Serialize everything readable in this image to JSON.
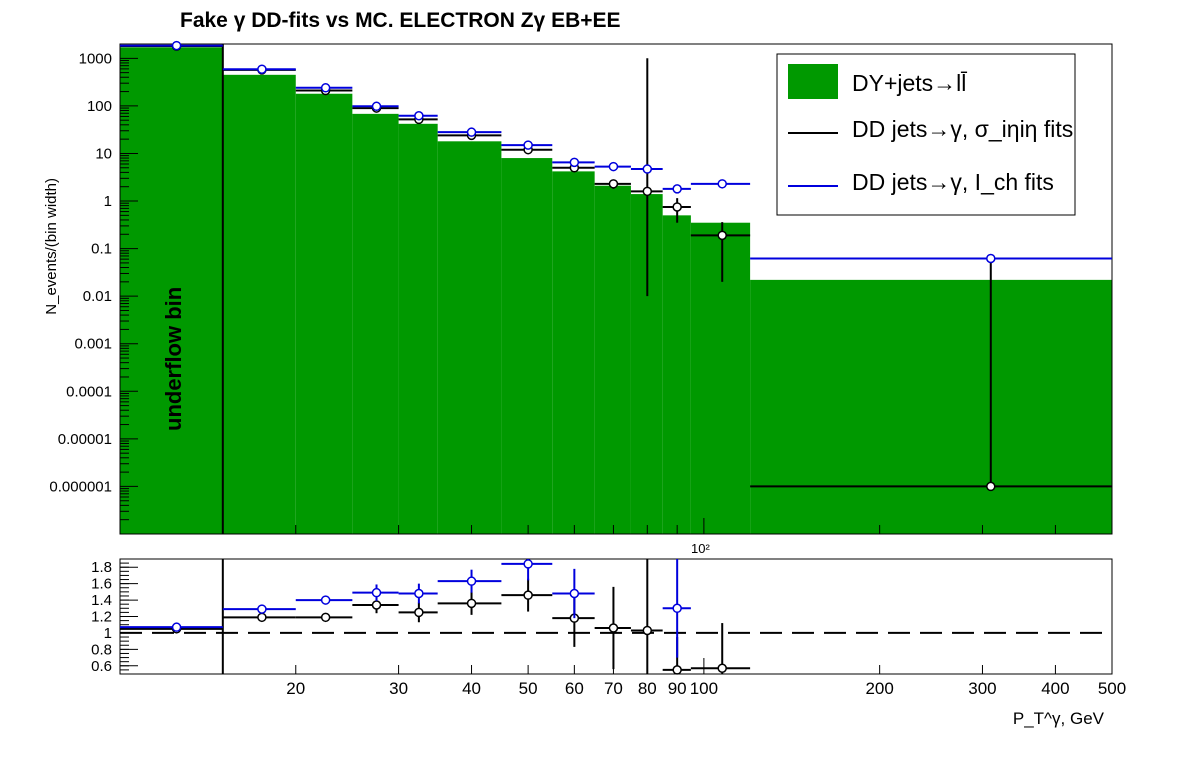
{
  "chart_data": {
    "type": "bar",
    "title": "Fake  γ DD-fits vs MC. ELECTRON Zγ  EB+EE",
    "xlabel": "P_T^γ, GeV",
    "ylabel": "N_events/(bin width)",
    "x_scale": "log",
    "y_scale": "log",
    "xlim": [
      10,
      500
    ],
    "ylim": [
      1e-07,
      2000
    ],
    "x_ticks": [
      "20",
      "30",
      "40",
      "50",
      "60",
      "70",
      "80",
      "90",
      "100",
      "200",
      "300",
      "400",
      "500"
    ],
    "x_multiplier_label": "10²",
    "y_ticks": [
      "0.000001",
      "0.00001",
      "0.0001",
      "0.001",
      "0.01",
      "0.1",
      "1",
      "10",
      "100",
      "1000"
    ],
    "annotation": "underflow bin",
    "legend_position": "top-right",
    "bin_edges": [
      10,
      15,
      20,
      25,
      30,
      35,
      45,
      55,
      65,
      75,
      85,
      95,
      120,
      500
    ],
    "series": [
      {
        "name": "DY+jets→ll̄",
        "kind": "histogram",
        "color": "#009900",
        "values": [
          1700,
          450,
          180,
          68,
          42,
          18,
          8,
          4.2,
          2.1,
          1.4,
          0.5,
          0.35,
          0.022
        ]
      },
      {
        "name": "DD jets→γ, σ_iηiη fits",
        "kind": "points",
        "color": "#000000",
        "x": [
          12.5,
          17.5,
          22.5,
          27.5,
          32.5,
          40,
          50,
          60,
          70,
          80,
          90,
          107.5,
          310
        ],
        "values": [
          1800,
          570,
          210,
          90,
          52,
          24,
          12,
          5.0,
          2.3,
          1.6,
          0.75,
          0.19,
          1e-06
        ],
        "err_low": [
          0,
          40,
          15,
          7,
          5,
          2.5,
          1.5,
          0.7,
          0.5,
          1.59,
          0.4,
          0.17,
          0
        ],
        "err_high": [
          0,
          40,
          15,
          7,
          5,
          2.5,
          1.5,
          0.7,
          0.5,
          1000,
          0.4,
          0.17,
          0.06
        ]
      },
      {
        "name": "DD jets→γ, I_ch fits",
        "kind": "points",
        "color": "#0000dd",
        "x": [
          12.5,
          17.5,
          22.5,
          27.5,
          32.5,
          40,
          50,
          60,
          70,
          80,
          90,
          107.5,
          310
        ],
        "values": [
          1850,
          590,
          240,
          98,
          62,
          28,
          15,
          6.5,
          5.3,
          4.7,
          1.8,
          2.3,
          0.062
        ],
        "err_low": [
          0,
          40,
          20,
          8,
          6,
          3,
          2,
          1,
          0.5,
          0.8,
          0.3,
          0.3,
          0
        ],
        "err_high": [
          0,
          40,
          20,
          8,
          6,
          3,
          2,
          1,
          0.5,
          0.8,
          0.3,
          0.3,
          0
        ]
      }
    ],
    "ratio_panel": {
      "ylim": [
        0.5,
        1.9
      ],
      "y_ticks": [
        "0.6",
        "0.8",
        "1",
        "1.2",
        "1.4",
        "1.6",
        "1.8"
      ],
      "reference_line": 1,
      "series": [
        {
          "name": "σ_iηiη ratio",
          "color": "#000000",
          "x": [
            12.5,
            17.5,
            22.5,
            27.5,
            32.5,
            40,
            50,
            60,
            70,
            80,
            90,
            107.5
          ],
          "values": [
            1.05,
            1.19,
            1.19,
            1.34,
            1.25,
            1.36,
            1.46,
            1.18,
            1.06,
            1.03,
            0.55,
            0.57
          ],
          "err": [
            0.02,
            0.04,
            0.05,
            0.1,
            0.12,
            0.14,
            0.2,
            0.35,
            0.5,
            0.9,
            0.4,
            0.55
          ]
        },
        {
          "name": "I_ch ratio",
          "color": "#0000dd",
          "x": [
            12.5,
            17.5,
            22.5,
            27.5,
            32.5,
            40,
            50,
            60,
            70,
            80,
            90,
            107.5
          ],
          "values": [
            1.07,
            1.29,
            1.4,
            1.49,
            1.48,
            1.63,
            1.84,
            1.48,
            null,
            null,
            1.3,
            null
          ],
          "err": [
            0.02,
            0.04,
            0.05,
            0.1,
            0.12,
            0.14,
            0.2,
            0.3,
            0,
            0,
            0.6,
            0
          ]
        }
      ]
    }
  }
}
